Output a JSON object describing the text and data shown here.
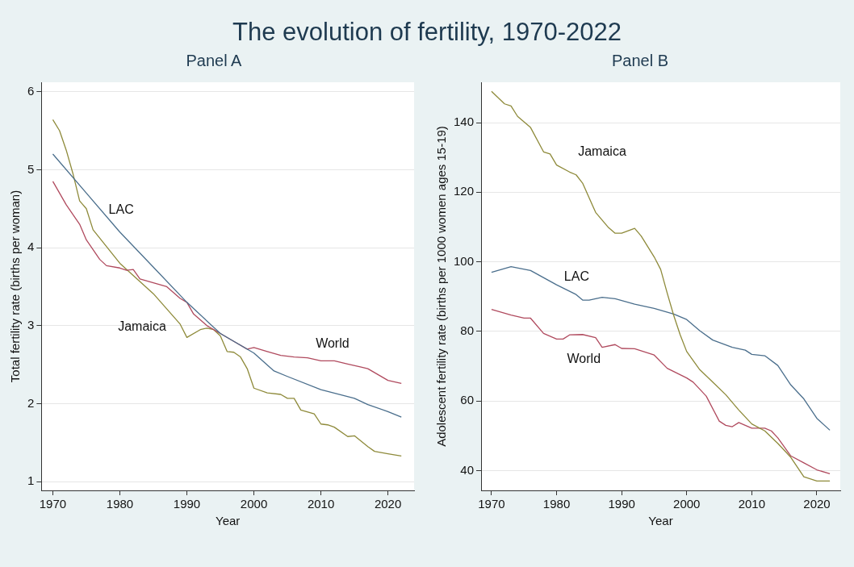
{
  "chart_data": [
    {
      "type": "line",
      "title": "The evolution of fertility, 1970-2022",
      "subtitle": "Panel A",
      "xlabel": "Year",
      "ylabel": "Total fertility rate (births per woman)",
      "xlim": [
        1968.3,
        2023.9
      ],
      "xticks": [
        1970,
        1980,
        1990,
        2000,
        2010,
        2020
      ],
      "ylim": [
        0.89,
        6.12
      ],
      "yticks": [
        1,
        2,
        3,
        4,
        5,
        6
      ],
      "grid": "y",
      "legend": false,
      "marker": "none",
      "line_style": "solid",
      "series": [
        {
          "name": "LAC",
          "color": "#4a6e8c",
          "x": [
            1970,
            1975,
            1980,
            1985,
            1990,
            1995,
            2000,
            2003,
            2005,
            2010,
            2015,
            2017,
            2020,
            2022
          ],
          "values": [
            5.2,
            4.7,
            4.2,
            3.75,
            3.3,
            2.9,
            2.65,
            2.42,
            2.35,
            2.18,
            2.07,
            1.99,
            1.9,
            1.83
          ]
        },
        {
          "name": "World",
          "color": "#b04a5e",
          "x": [
            1970,
            1972,
            1974,
            1975,
            1977,
            1978,
            1980,
            1981,
            1982,
            1983,
            1985,
            1987,
            1989,
            1990,
            1991,
            1993,
            1995,
            1997,
            1999,
            2000,
            2002,
            2004,
            2006,
            2008,
            2010,
            2012,
            2014,
            2016,
            2017,
            2020,
            2022
          ],
          "values": [
            4.85,
            4.55,
            4.3,
            4.1,
            3.85,
            3.77,
            3.74,
            3.71,
            3.72,
            3.6,
            3.55,
            3.5,
            3.35,
            3.3,
            3.15,
            3.0,
            2.9,
            2.8,
            2.7,
            2.72,
            2.67,
            2.62,
            2.6,
            2.59,
            2.55,
            2.55,
            2.51,
            2.47,
            2.45,
            2.3,
            2.26
          ]
        },
        {
          "name": "Jamaica",
          "color": "#8e8a3a",
          "x": [
            1970,
            1971,
            1972,
            1973,
            1974,
            1975,
            1976,
            1980,
            1985,
            1989,
            1990,
            1992,
            1993,
            1994,
            1995,
            1996,
            1997,
            1998,
            1999,
            2000,
            2002,
            2004,
            2005,
            2006,
            2007,
            2009,
            2010,
            2011,
            2012,
            2014,
            2015,
            2017,
            2018,
            2020,
            2022
          ],
          "values": [
            5.64,
            5.5,
            5.25,
            4.95,
            4.6,
            4.5,
            4.23,
            3.8,
            3.41,
            3.02,
            2.85,
            2.95,
            2.97,
            2.95,
            2.87,
            2.67,
            2.66,
            2.6,
            2.45,
            2.2,
            2.14,
            2.12,
            2.07,
            2.07,
            1.92,
            1.87,
            1.74,
            1.73,
            1.7,
            1.58,
            1.59,
            1.45,
            1.39,
            1.36,
            1.33
          ]
        }
      ]
    },
    {
      "type": "line",
      "title": "Panel B",
      "xlabel": "Year",
      "ylabel": "Adolescent fertility rate (births per 1000 women ages 15-19)",
      "xlim": [
        1968.4,
        2023.6
      ],
      "xticks": [
        1970,
        1980,
        1990,
        2000,
        2010,
        2020
      ],
      "ylim": [
        34.3,
        151.6
      ],
      "yticks": [
        40,
        60,
        80,
        100,
        120,
        140
      ],
      "grid": "y",
      "legend": false,
      "marker": "none",
      "line_style": "solid",
      "series": [
        {
          "name": "Jamaica",
          "color": "#8e8a3a",
          "x": [
            1970,
            1972,
            1973,
            1974,
            1976,
            1978,
            1979,
            1980,
            1982,
            1983,
            1984,
            1986,
            1988,
            1989,
            1990,
            1992,
            1993,
            1995,
            1996,
            1997,
            1998,
            1999,
            2000,
            2002,
            2004,
            2006,
            2008,
            2010,
            2012,
            2014,
            2016,
            2018,
            2020,
            2022
          ],
          "values": [
            149,
            145.4,
            144.8,
            141.8,
            138.6,
            131.6,
            131,
            127.8,
            125.8,
            125,
            122.6,
            114.2,
            109.8,
            108.2,
            108.2,
            109.6,
            107.4,
            101.4,
            97.8,
            91,
            84.6,
            79,
            74.2,
            69,
            65.4,
            61.8,
            57.4,
            53.4,
            51.4,
            47.8,
            43.8,
            38.2,
            37,
            37
          ]
        },
        {
          "name": "LAC",
          "color": "#4a6e8c",
          "x": [
            1970,
            1973,
            1976,
            1980,
            1983,
            1984,
            1985,
            1987,
            1989,
            1992,
            1995,
            1998,
            2000,
            2002,
            2004,
            2007,
            2009,
            2010,
            2012,
            2014,
            2016,
            2018,
            2020,
            2022
          ],
          "values": [
            97,
            98.6,
            97.5,
            93.4,
            90.6,
            89,
            89,
            89.8,
            89.4,
            87.8,
            86.6,
            85,
            83.4,
            80.2,
            77.5,
            75.4,
            74.6,
            73.4,
            73,
            70.2,
            64.6,
            60.6,
            55,
            51.6
          ]
        },
        {
          "name": "World",
          "color": "#b04a5e",
          "x": [
            1970,
            1973,
            1975,
            1976,
            1978,
            1980,
            1981,
            1982,
            1984,
            1986,
            1987,
            1989,
            1990,
            1992,
            1995,
            1997,
            2000,
            2001,
            2003,
            2005,
            2006,
            2007,
            2008,
            2010,
            2012,
            2013,
            2014,
            2016,
            2018,
            2020,
            2022
          ],
          "values": [
            86.3,
            84.7,
            83.8,
            83.8,
            79.4,
            77.8,
            77.8,
            79,
            79.1,
            78.2,
            75.4,
            76.2,
            75.1,
            75,
            73.2,
            69.4,
            66.6,
            65.4,
            61.4,
            54.2,
            53,
            52.6,
            53.8,
            52.2,
            52.2,
            51.4,
            49.4,
            44.2,
            42.2,
            40.2,
            39.1
          ]
        }
      ]
    }
  ]
}
